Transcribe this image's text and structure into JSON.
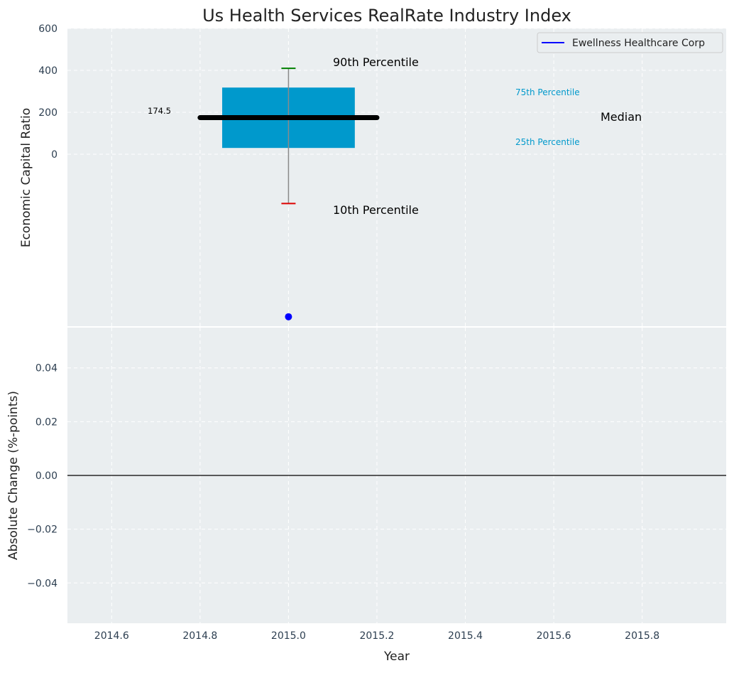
{
  "chart_data": [
    {
      "type": "box",
      "title": "Us Health Services RealRate Industry Index",
      "ylabel": "Economic Capital Ratio",
      "ylim": [
        -820,
        600
      ],
      "yticks": [
        0,
        200,
        400,
        600
      ],
      "xlim": [
        2014.5,
        2015.99
      ],
      "grid": true,
      "legend_position": "top-right",
      "box": {
        "x": 2015.0,
        "x_left": 2014.85,
        "x_right": 2015.15,
        "p10": -235,
        "p25": 30,
        "median": 174.5,
        "p75": 318,
        "p90": 410,
        "color": "#0099cc"
      },
      "median_label": "174.5",
      "series": [
        {
          "name": "Ewellness Healthcare Corp",
          "x": [
            2015.0
          ],
          "y": [
            -775
          ],
          "color": "#0000ff"
        }
      ],
      "annotations": {
        "p90": "90th Percentile",
        "p75": "75th Percentile",
        "median": "Median",
        "p25": "25th Percentile",
        "p10": "10th Percentile"
      }
    },
    {
      "type": "line",
      "xlabel": "Year",
      "ylabel": "Absolute Change (%-points)",
      "ylim": [
        -0.055,
        0.055
      ],
      "yticks": [
        -0.04,
        -0.02,
        0.0,
        0.02,
        0.04
      ],
      "ytick_labels": [
        "−0.04",
        "−0.02",
        "0.00",
        "0.02",
        "0.04"
      ],
      "xlim": [
        2014.5,
        2015.99
      ],
      "xticks": [
        2014.6,
        2014.8,
        2015.0,
        2015.2,
        2015.4,
        2015.6,
        2015.8
      ],
      "xtick_labels": [
        "2014.6",
        "2014.8",
        "2015.0",
        "2015.2",
        "2015.4",
        "2015.6",
        "2015.8"
      ],
      "grid": true,
      "reference_line_y": 0
    }
  ],
  "colors": {
    "plot_background": "#eaeef0",
    "box_fill": "#0099cc",
    "p90_cap": "#008000",
    "p10_cap": "#dd0000",
    "company": "#0000ff"
  }
}
